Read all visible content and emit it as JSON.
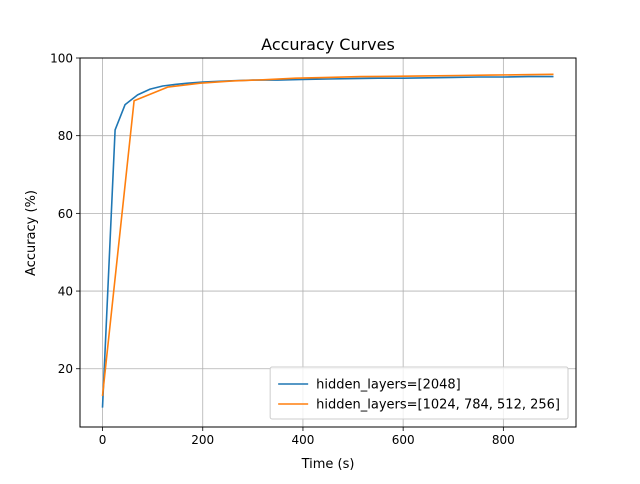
{
  "chart_data": {
    "type": "line",
    "title": "Accuracy Curves",
    "xlabel": "Time (s)",
    "ylabel": "Accuracy (%)",
    "xlim": [
      -45,
      945
    ],
    "ylim": [
      5,
      100
    ],
    "xticks": [
      0,
      200,
      400,
      600,
      800
    ],
    "yticks": [
      20,
      40,
      60,
      80,
      100
    ],
    "grid": true,
    "legend_position": "lower-right",
    "series": [
      {
        "name": "hidden_layers=[2048]",
        "color": "#1f77b4",
        "x": [
          0,
          25,
          45,
          70,
          95,
          120,
          145,
          170,
          200,
          250,
          300,
          350,
          400,
          450,
          500,
          550,
          600,
          650,
          700,
          750,
          800,
          850,
          900
        ],
        "y": [
          10,
          81.5,
          88,
          90.5,
          92,
          92.8,
          93.2,
          93.5,
          93.8,
          94.1,
          94.3,
          94.3,
          94.5,
          94.6,
          94.7,
          94.8,
          94.8,
          94.9,
          95.0,
          95.1,
          95.1,
          95.2,
          95.2
        ]
      },
      {
        "name": "hidden_layers=[1024, 784, 512, 256]",
        "color": "#ff7f0e",
        "x": [
          0,
          63,
          130,
          195,
          260,
          320,
          385,
          450,
          515,
          580,
          645,
          710,
          775,
          840,
          900
        ],
        "y": [
          13,
          89,
          92.5,
          93.5,
          94.1,
          94.4,
          94.8,
          95.0,
          95.2,
          95.3,
          95.4,
          95.5,
          95.6,
          95.7,
          95.8
        ]
      }
    ]
  }
}
